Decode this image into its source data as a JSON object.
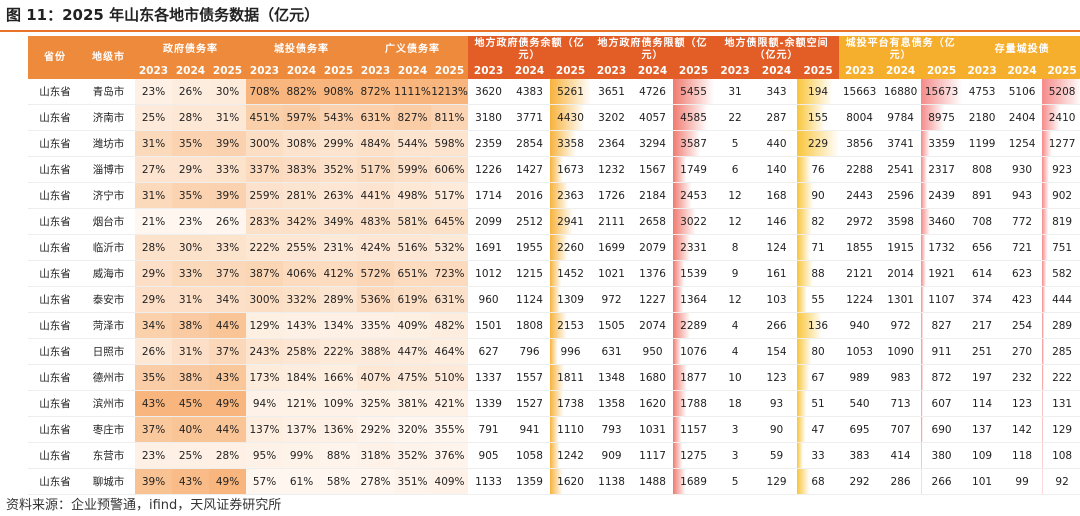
{
  "title": "图 11：2025 年山东各地市债务数据（亿元）",
  "table": {
    "header": [
      "省份",
      "地级市",
      "政府债务率",
      "城投债务率",
      "广义债务率",
      "地方政府债务余额（亿元）",
      "地方政府债务限额（亿元）",
      "地方债限额-余额空间（亿元）",
      "城投平台有息债务（亿元）",
      "存量城投债"
    ],
    "years": [
      "2023",
      "2024",
      "2025"
    ],
    "rows": [
      [
        "山东省",
        "青岛市",
        "23%",
        "26%",
        "30%",
        "708%",
        "882%",
        "908%",
        "872%",
        "1111%",
        "1213%",
        "3620",
        "4383",
        "5261",
        "3651",
        "4726",
        "5455",
        "31",
        "343",
        "194",
        "15663",
        "16880",
        "15673",
        "4753",
        "5106",
        "5208"
      ],
      [
        "山东省",
        "济南市",
        "25%",
        "28%",
        "31%",
        "451%",
        "597%",
        "543%",
        "631%",
        "827%",
        "811%",
        "3180",
        "3771",
        "4430",
        "3202",
        "4057",
        "4585",
        "22",
        "287",
        "155",
        "8004",
        "9784",
        "8975",
        "2180",
        "2404",
        "2410"
      ],
      [
        "山东省",
        "潍坊市",
        "31%",
        "35%",
        "39%",
        "300%",
        "308%",
        "299%",
        "484%",
        "544%",
        "598%",
        "2359",
        "2854",
        "3358",
        "2364",
        "3294",
        "3587",
        "5",
        "440",
        "229",
        "3856",
        "3741",
        "3359",
        "1199",
        "1254",
        "1277"
      ],
      [
        "山东省",
        "淄博市",
        "27%",
        "29%",
        "33%",
        "337%",
        "383%",
        "352%",
        "517%",
        "599%",
        "606%",
        "1226",
        "1427",
        "1673",
        "1232",
        "1567",
        "1749",
        "6",
        "140",
        "76",
        "2288",
        "2541",
        "2317",
        "808",
        "930",
        "923"
      ],
      [
        "山东省",
        "济宁市",
        "31%",
        "35%",
        "39%",
        "259%",
        "281%",
        "263%",
        "441%",
        "498%",
        "517%",
        "1714",
        "2016",
        "2363",
        "1726",
        "2184",
        "2453",
        "12",
        "168",
        "90",
        "2443",
        "2596",
        "2439",
        "891",
        "943",
        "902"
      ],
      [
        "山东省",
        "烟台市",
        "21%",
        "23%",
        "26%",
        "283%",
        "342%",
        "349%",
        "483%",
        "581%",
        "645%",
        "2099",
        "2512",
        "2941",
        "2111",
        "2658",
        "3022",
        "12",
        "146",
        "82",
        "2972",
        "3598",
        "3460",
        "708",
        "772",
        "819"
      ],
      [
        "山东省",
        "临沂市",
        "28%",
        "30%",
        "33%",
        "222%",
        "255%",
        "231%",
        "424%",
        "516%",
        "532%",
        "1691",
        "1955",
        "2260",
        "1699",
        "2079",
        "2331",
        "8",
        "124",
        "71",
        "1855",
        "1915",
        "1732",
        "656",
        "721",
        "751"
      ],
      [
        "山东省",
        "威海市",
        "29%",
        "33%",
        "37%",
        "387%",
        "406%",
        "412%",
        "572%",
        "651%",
        "723%",
        "1012",
        "1215",
        "1452",
        "1021",
        "1376",
        "1539",
        "9",
        "161",
        "88",
        "2121",
        "2014",
        "1921",
        "614",
        "623",
        "582"
      ],
      [
        "山东省",
        "泰安市",
        "29%",
        "31%",
        "34%",
        "300%",
        "332%",
        "289%",
        "536%",
        "619%",
        "631%",
        "960",
        "1124",
        "1309",
        "972",
        "1227",
        "1364",
        "12",
        "103",
        "55",
        "1224",
        "1301",
        "1107",
        "374",
        "423",
        "444"
      ],
      [
        "山东省",
        "菏泽市",
        "34%",
        "38%",
        "44%",
        "129%",
        "143%",
        "134%",
        "335%",
        "409%",
        "482%",
        "1501",
        "1808",
        "2153",
        "1505",
        "2074",
        "2289",
        "4",
        "266",
        "136",
        "940",
        "972",
        "827",
        "217",
        "254",
        "289"
      ],
      [
        "山东省",
        "日照市",
        "26%",
        "31%",
        "37%",
        "243%",
        "258%",
        "222%",
        "388%",
        "447%",
        "464%",
        "627",
        "796",
        "996",
        "631",
        "950",
        "1076",
        "4",
        "154",
        "80",
        "1053",
        "1090",
        "911",
        "251",
        "270",
        "285"
      ],
      [
        "山东省",
        "德州市",
        "35%",
        "38%",
        "43%",
        "173%",
        "184%",
        "166%",
        "407%",
        "475%",
        "510%",
        "1337",
        "1557",
        "1811",
        "1348",
        "1680",
        "1877",
        "10",
        "123",
        "67",
        "989",
        "983",
        "872",
        "197",
        "232",
        "222"
      ],
      [
        "山东省",
        "滨州市",
        "43%",
        "45%",
        "49%",
        "94%",
        "121%",
        "109%",
        "325%",
        "381%",
        "421%",
        "1339",
        "1527",
        "1738",
        "1358",
        "1620",
        "1788",
        "18",
        "93",
        "51",
        "540",
        "713",
        "607",
        "114",
        "123",
        "131"
      ],
      [
        "山东省",
        "枣庄市",
        "37%",
        "40%",
        "44%",
        "137%",
        "137%",
        "136%",
        "292%",
        "320%",
        "355%",
        "791",
        "941",
        "1110",
        "793",
        "1031",
        "1157",
        "3",
        "90",
        "47",
        "695",
        "707",
        "690",
        "137",
        "142",
        "129"
      ],
      [
        "山东省",
        "东营市",
        "23%",
        "25%",
        "28%",
        "95%",
        "99%",
        "88%",
        "318%",
        "352%",
        "376%",
        "905",
        "1058",
        "1242",
        "909",
        "1117",
        "1275",
        "3",
        "59",
        "33",
        "383",
        "414",
        "380",
        "109",
        "118",
        "108"
      ],
      [
        "山东省",
        "聊城市",
        "39%",
        "43%",
        "49%",
        "57%",
        "61%",
        "58%",
        "278%",
        "351%",
        "409%",
        "1133",
        "1359",
        "1620",
        "1138",
        "1488",
        "1689",
        "5",
        "129",
        "68",
        "292",
        "286",
        "266",
        "101",
        "99",
        "92"
      ]
    ]
  },
  "footer": "资料来源：企业预警通，ifind，天风证券研究所"
}
